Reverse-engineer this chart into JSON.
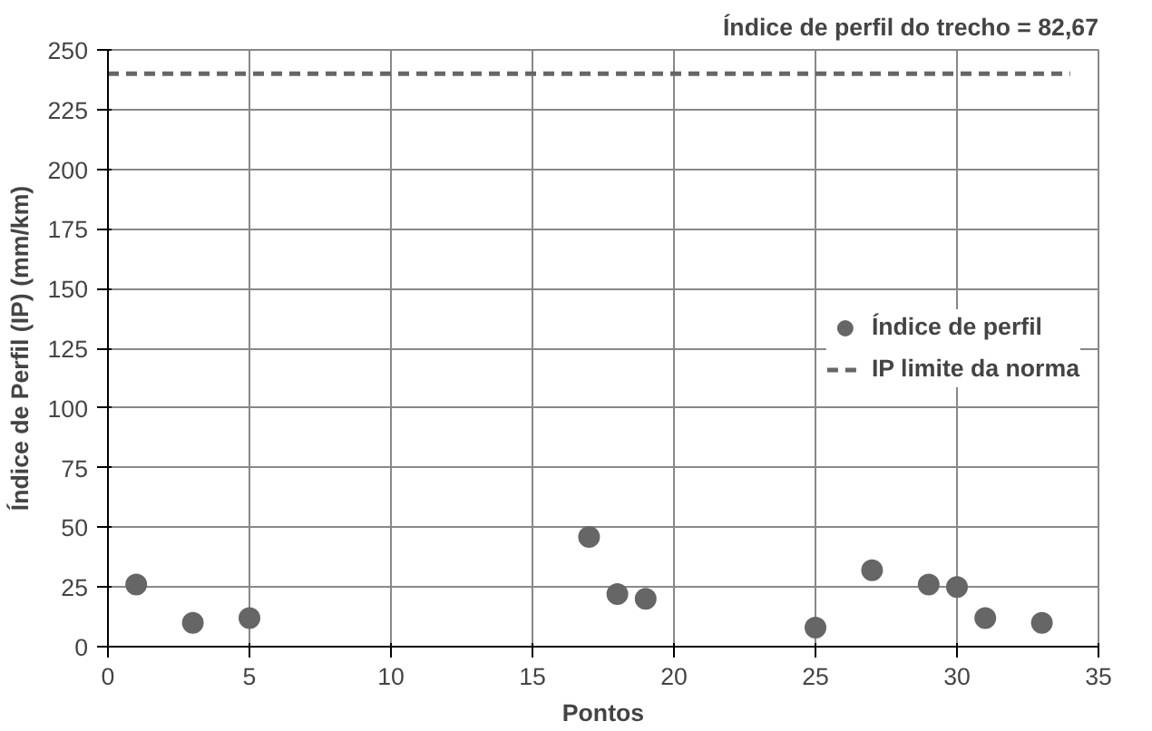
{
  "chart_data": {
    "type": "scatter",
    "annotations": [
      "Índice de perfil do trecho = 82,67"
    ],
    "xlabel": "Pontos",
    "ylabel": "Índice de Perfil (IP) (mm/km)",
    "xlim": [
      0,
      35
    ],
    "xticks": [
      0,
      5,
      10,
      15,
      20,
      25,
      30,
      35
    ],
    "ylim": [
      0,
      250
    ],
    "yticks": [
      0,
      25,
      50,
      75,
      100,
      125,
      150,
      175,
      200,
      225,
      250
    ],
    "grid": true,
    "legend": "right",
    "marker": "circle",
    "series": [
      {
        "name": "Índice de perfil",
        "color": "#666666",
        "x": [
          1,
          3,
          5,
          17,
          18,
          19,
          25,
          27,
          29,
          30,
          31,
          33
        ],
        "values": [
          26,
          10,
          12,
          46,
          22,
          20,
          8,
          32,
          26,
          25,
          12,
          10
        ]
      },
      {
        "name": "IP limite da norma",
        "type": "line",
        "line_style": "dashed",
        "marker": "none",
        "color": "#666666",
        "x": [
          0,
          34
        ],
        "values": [
          240,
          240
        ]
      }
    ]
  }
}
